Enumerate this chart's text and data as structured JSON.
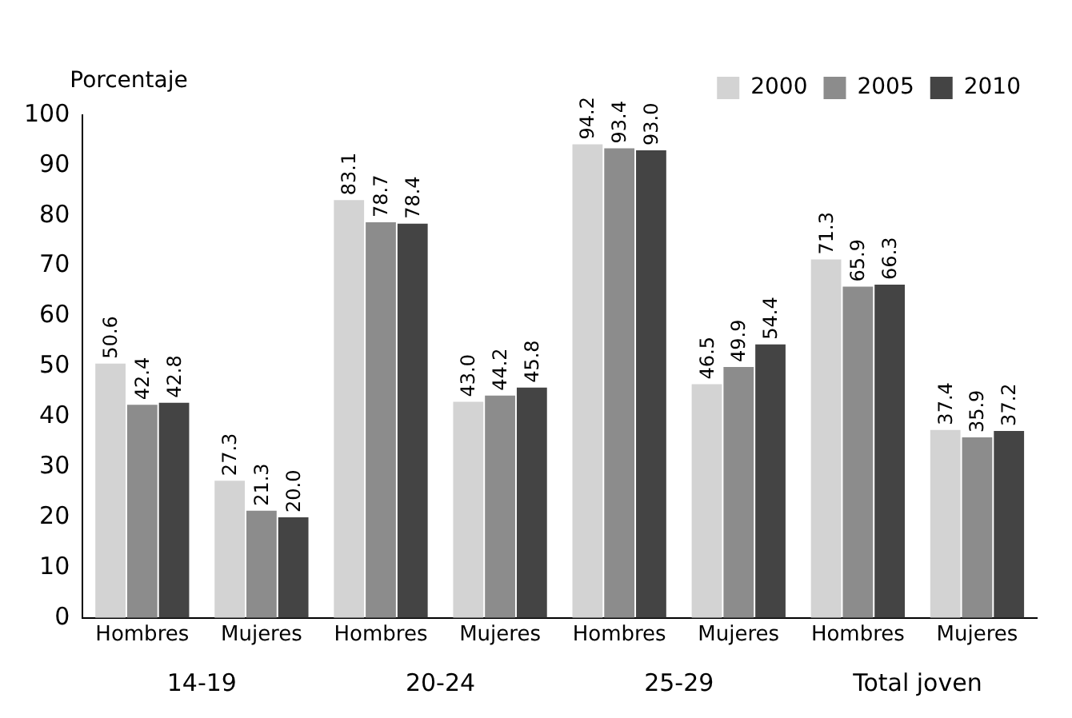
{
  "chart_data": {
    "type": "bar",
    "ylabel": "Porcentaje",
    "categories": [
      "Hombres",
      "Mujeres",
      "Hombres",
      "Mujeres",
      "Hombres",
      "Mujeres",
      "Hombres",
      "Mujeres"
    ],
    "annotations": [
      "14-19",
      "20-24",
      "25-29",
      "Total joven"
    ],
    "series": [
      {
        "name": "2000",
        "color": "#d3d3d3",
        "values": [
          50.6,
          27.3,
          83.1,
          43.0,
          94.2,
          46.5,
          71.3,
          37.4
        ],
        "value_labels": [
          "50.6",
          "27.3",
          "83.1",
          "43.0",
          "94.2",
          "46.5",
          "71.3",
          "37.4"
        ]
      },
      {
        "name": "2005",
        "color": "#8c8c8c",
        "values": [
          42.4,
          21.3,
          78.7,
          44.2,
          93.4,
          49.9,
          65.9,
          35.9
        ],
        "value_labels": [
          "42.4",
          "21.3",
          "78.7",
          "44.2",
          "93.4",
          "49.9",
          "65.9",
          "35.9"
        ]
      },
      {
        "name": "2010",
        "color": "#444444",
        "values": [
          42.8,
          20.0,
          78.4,
          45.8,
          93.0,
          54.4,
          66.3,
          37.2
        ],
        "value_labels": [
          "42.8",
          "20.0",
          "78.4",
          "45.8",
          "93.0",
          "54.4",
          "66.3",
          "37.2"
        ]
      }
    ],
    "ylim": [
      0,
      100
    ],
    "yticks": [
      0,
      10,
      20,
      30,
      40,
      50,
      60,
      70,
      80,
      90,
      100
    ],
    "grid": false,
    "legend": "top right"
  }
}
